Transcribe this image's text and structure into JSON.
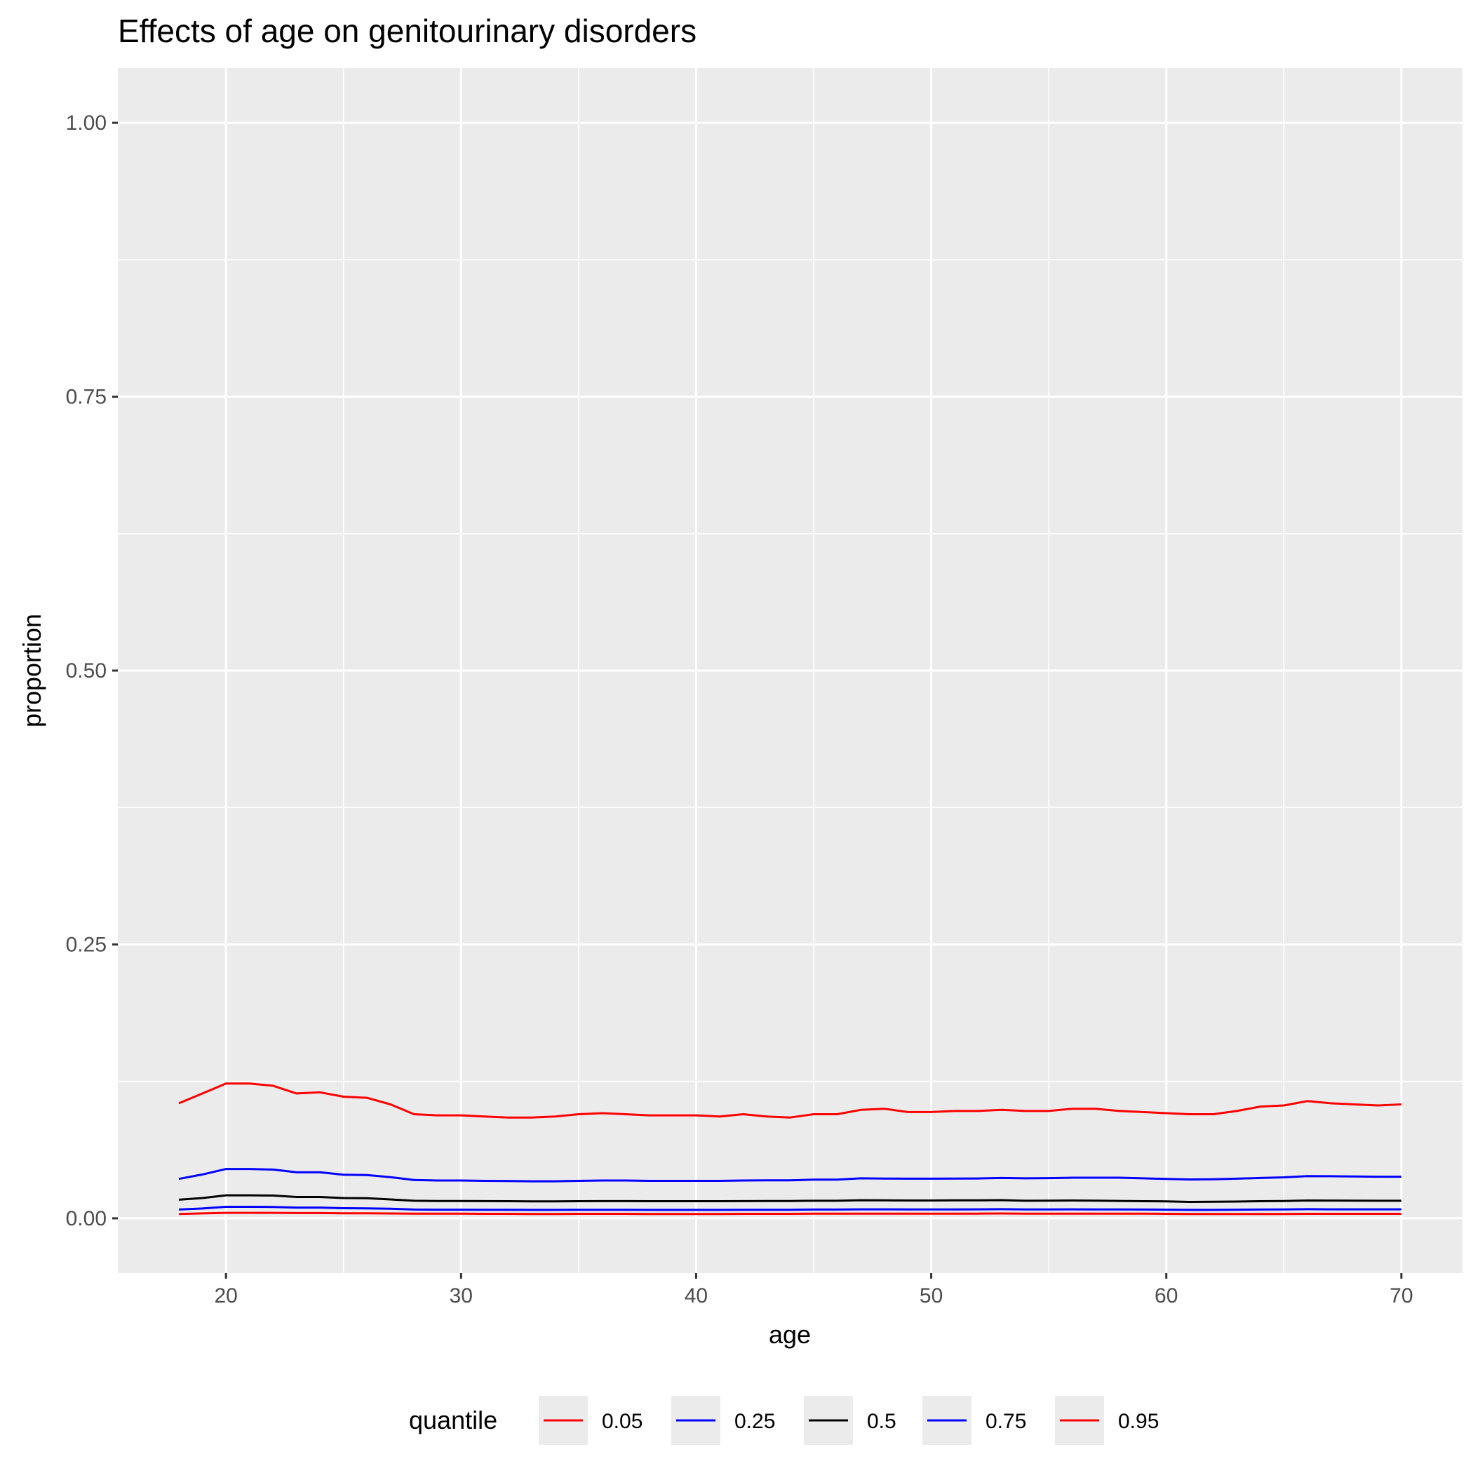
{
  "chart_data": {
    "type": "line",
    "title": "Effects of age on genitourinary disorders",
    "xlabel": "age",
    "ylabel": "proportion",
    "xlim": [
      15.4,
      72.6
    ],
    "ylim": [
      -0.05,
      1.05
    ],
    "x_ticks": [
      20,
      30,
      40,
      50,
      60,
      70
    ],
    "x_tick_labels": [
      "20",
      "30",
      "40",
      "50",
      "60",
      "70"
    ],
    "y_ticks": [
      0,
      0.25,
      0.5,
      0.75,
      1.0
    ],
    "y_tick_labels": [
      "0.00",
      "0.25",
      "0.50",
      "0.75",
      "1.00"
    ],
    "grid": true,
    "legend": {
      "title": "quantile",
      "position": "bottom"
    },
    "x": [
      18,
      19,
      20,
      21,
      22,
      23,
      24,
      25,
      26,
      27,
      28,
      29,
      30,
      31,
      32,
      33,
      34,
      35,
      36,
      37,
      38,
      39,
      40,
      41,
      42,
      43,
      44,
      45,
      46,
      47,
      48,
      49,
      50,
      51,
      52,
      53,
      54,
      55,
      56,
      57,
      58,
      59,
      60,
      61,
      62,
      63,
      64,
      65,
      66,
      67,
      68,
      69,
      70
    ],
    "series": [
      {
        "name": "0.05",
        "color": "#ff0000",
        "values": [
          0.004,
          0.0045,
          0.005,
          0.005,
          0.005,
          0.0048,
          0.0048,
          0.0046,
          0.0046,
          0.0044,
          0.0042,
          0.0042,
          0.0042,
          0.0041,
          0.0041,
          0.004,
          0.004,
          0.0041,
          0.0041,
          0.0041,
          0.004,
          0.004,
          0.004,
          0.004,
          0.0041,
          0.0041,
          0.0041,
          0.0042,
          0.0042,
          0.0043,
          0.0043,
          0.0043,
          0.0043,
          0.0043,
          0.0043,
          0.0044,
          0.0043,
          0.0043,
          0.0043,
          0.0042,
          0.0042,
          0.0042,
          0.0041,
          0.004,
          0.004,
          0.004,
          0.004,
          0.004,
          0.0041,
          0.0041,
          0.0041,
          0.0041,
          0.0041
        ]
      },
      {
        "name": "0.25",
        "color": "#0000ff",
        "values": [
          0.008,
          0.009,
          0.0105,
          0.0105,
          0.0104,
          0.0098,
          0.0098,
          0.0092,
          0.0091,
          0.0087,
          0.008,
          0.0079,
          0.0079,
          0.0078,
          0.0078,
          0.0077,
          0.0077,
          0.0078,
          0.0078,
          0.0078,
          0.0077,
          0.0077,
          0.0077,
          0.0077,
          0.0078,
          0.0078,
          0.0078,
          0.008,
          0.008,
          0.0082,
          0.0082,
          0.0081,
          0.0081,
          0.0081,
          0.0082,
          0.0083,
          0.0081,
          0.0081,
          0.0082,
          0.0081,
          0.0081,
          0.008,
          0.0079,
          0.0077,
          0.0077,
          0.0079,
          0.008,
          0.0081,
          0.0083,
          0.0082,
          0.0082,
          0.0082,
          0.0082
        ]
      },
      {
        "name": "0.5",
        "color": "#000000",
        "values": [
          0.017,
          0.0185,
          0.021,
          0.021,
          0.0208,
          0.0195,
          0.0195,
          0.0185,
          0.0183,
          0.0172,
          0.016,
          0.0158,
          0.0158,
          0.0157,
          0.0156,
          0.0155,
          0.0155,
          0.0156,
          0.0157,
          0.0157,
          0.0156,
          0.0156,
          0.0156,
          0.0156,
          0.0157,
          0.0158,
          0.0158,
          0.016,
          0.016,
          0.0165,
          0.0164,
          0.0163,
          0.0163,
          0.0164,
          0.0164,
          0.0166,
          0.016,
          0.0161,
          0.0163,
          0.0161,
          0.0159,
          0.0156,
          0.0155,
          0.015,
          0.0151,
          0.0153,
          0.0156,
          0.0158,
          0.0163,
          0.0162,
          0.0161,
          0.016,
          0.016
        ]
      },
      {
        "name": "0.75",
        "color": "#0000ff",
        "values": [
          0.036,
          0.04,
          0.045,
          0.045,
          0.0445,
          0.042,
          0.042,
          0.0398,
          0.0395,
          0.0375,
          0.035,
          0.0345,
          0.0345,
          0.0342,
          0.034,
          0.0338,
          0.0338,
          0.0342,
          0.0345,
          0.0345,
          0.0342,
          0.0342,
          0.0342,
          0.0342,
          0.0345,
          0.0347,
          0.0347,
          0.0353,
          0.0353,
          0.0365,
          0.0363,
          0.0362,
          0.0362,
          0.0363,
          0.0364,
          0.0368,
          0.0365,
          0.0367,
          0.0371,
          0.0371,
          0.0371,
          0.0365,
          0.036,
          0.0355,
          0.0356,
          0.0362,
          0.0368,
          0.0374,
          0.0385,
          0.0384,
          0.0382,
          0.038,
          0.038
        ]
      },
      {
        "name": "0.95",
        "color": "#ff0000",
        "values": [
          0.105,
          0.114,
          0.123,
          0.123,
          0.121,
          0.114,
          0.115,
          0.111,
          0.11,
          0.104,
          0.095,
          0.094,
          0.094,
          0.093,
          0.092,
          0.092,
          0.093,
          0.095,
          0.096,
          0.095,
          0.094,
          0.094,
          0.094,
          0.093,
          0.095,
          0.093,
          0.092,
          0.095,
          0.095,
          0.099,
          0.1,
          0.097,
          0.097,
          0.098,
          0.098,
          0.099,
          0.098,
          0.098,
          0.1,
          0.1,
          0.098,
          0.097,
          0.096,
          0.095,
          0.095,
          0.098,
          0.102,
          0.103,
          0.107,
          0.105,
          0.104,
          0.103,
          0.104
        ]
      }
    ]
  }
}
